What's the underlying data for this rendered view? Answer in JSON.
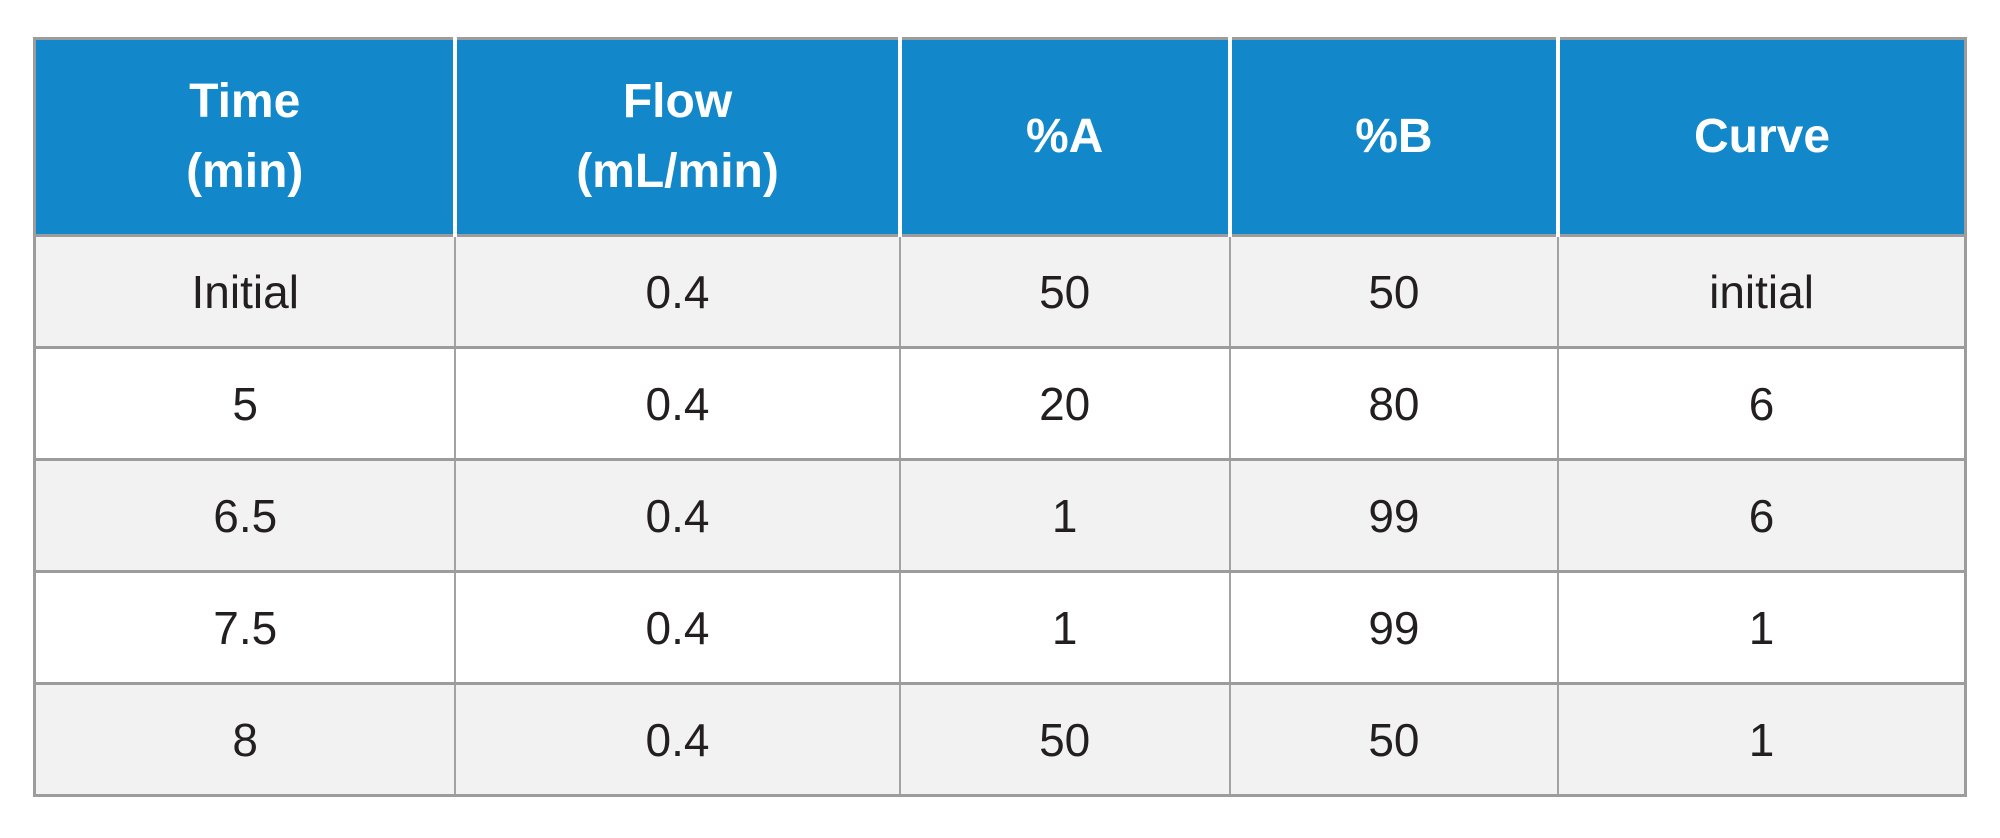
{
  "colors": {
    "header_bg": "#1287c9",
    "header_text": "#ffffff",
    "row_alt_bg": "#f2f2f2",
    "row_bg": "#ffffff",
    "border": "#9c9c9c",
    "body_text": "#231f20"
  },
  "table": {
    "columns": [
      "Time\n(min)",
      "Flow\n(mL/min)",
      "%A",
      "%B",
      "Curve"
    ],
    "rows": [
      [
        "Initial",
        "0.4",
        "50",
        "50",
        "initial"
      ],
      [
        "5",
        "0.4",
        "20",
        "80",
        "6"
      ],
      [
        "6.5",
        "0.4",
        "1",
        "99",
        "6"
      ],
      [
        "7.5",
        "0.4",
        "1",
        "99",
        "1"
      ],
      [
        "8",
        "0.4",
        "50",
        "50",
        "1"
      ]
    ]
  },
  "chart_data": {
    "type": "table",
    "title": "",
    "columns": [
      "Time (min)",
      "Flow (mL/min)",
      "%A",
      "%B",
      "Curve"
    ],
    "rows": [
      [
        "Initial",
        0.4,
        50,
        50,
        "initial"
      ],
      [
        5,
        0.4,
        20,
        80,
        6
      ],
      [
        6.5,
        0.4,
        1,
        99,
        6
      ],
      [
        7.5,
        0.4,
        1,
        99,
        1
      ],
      [
        8,
        0.4,
        50,
        50,
        1
      ]
    ]
  }
}
